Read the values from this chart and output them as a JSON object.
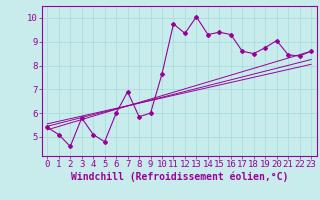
{
  "xlabel": "Windchill (Refroidissement éolien,°C)",
  "background_color": "#c8ecec",
  "line_color": "#990099",
  "xlim": [
    -0.5,
    23.5
  ],
  "ylim": [
    4.2,
    10.5
  ],
  "yticks": [
    5,
    6,
    7,
    8,
    9,
    10
  ],
  "xticks": [
    0,
    1,
    2,
    3,
    4,
    5,
    6,
    7,
    8,
    9,
    10,
    11,
    12,
    13,
    14,
    15,
    16,
    17,
    18,
    19,
    20,
    21,
    22,
    23
  ],
  "zigzag_x": [
    0,
    1,
    2,
    3,
    4,
    5,
    6,
    7,
    8,
    9,
    10,
    11,
    12,
    13,
    14,
    15,
    16,
    17,
    18,
    19,
    20,
    21,
    22,
    23
  ],
  "zigzag_y": [
    5.4,
    5.1,
    4.6,
    5.8,
    5.1,
    4.8,
    6.0,
    6.9,
    5.85,
    6.0,
    7.65,
    9.75,
    9.35,
    10.05,
    9.3,
    9.4,
    9.3,
    8.6,
    8.5,
    8.75,
    9.05,
    8.45,
    8.4,
    8.6
  ],
  "line1_x": [
    0,
    23
  ],
  "line1_y": [
    5.3,
    8.6
  ],
  "line2_x": [
    0,
    23
  ],
  "line2_y": [
    5.45,
    8.25
  ],
  "line3_x": [
    0,
    23
  ],
  "line3_y": [
    5.55,
    8.05
  ],
  "grid_color": "#aadddd",
  "xlabel_fontsize": 7,
  "tick_fontsize": 6.5
}
